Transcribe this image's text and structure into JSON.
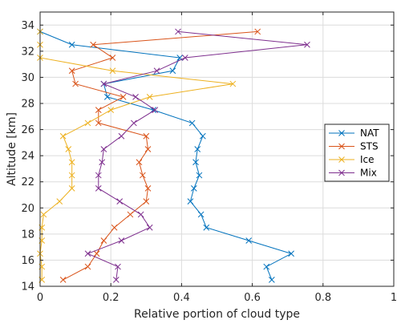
{
  "chart_data": {
    "type": "line",
    "xlabel": "Relative portion of cloud type",
    "ylabel": "Altitude [km]",
    "xlim": [
      0,
      1
    ],
    "ylim": [
      14,
      35
    ],
    "xticks": [
      "0",
      "0.2",
      "0.4",
      "0.6",
      "0.8",
      "1"
    ],
    "yticks": [
      "14",
      "16",
      "18",
      "20",
      "22",
      "24",
      "26",
      "28",
      "30",
      "32",
      "34"
    ],
    "grid": true,
    "legend_position": "right",
    "marker": "x",
    "series": [
      {
        "name": "NAT",
        "color": "#0072BD",
        "points": [
          [
            0.655,
            14.5
          ],
          [
            0.64,
            15.5
          ],
          [
            0.71,
            16.5
          ],
          [
            0.59,
            17.5
          ],
          [
            0.47,
            18.5
          ],
          [
            0.455,
            19.5
          ],
          [
            0.425,
            20.5
          ],
          [
            0.435,
            21.5
          ],
          [
            0.45,
            22.5
          ],
          [
            0.44,
            23.5
          ],
          [
            0.445,
            24.5
          ],
          [
            0.46,
            25.5
          ],
          [
            0.43,
            26.5
          ],
          [
            0.32,
            27.5
          ],
          [
            0.19,
            28.5
          ],
          [
            0.18,
            29.5
          ],
          [
            0.375,
            30.5
          ],
          [
            0.395,
            31.5
          ],
          [
            0.09,
            32.5
          ],
          [
            0.0,
            33.5
          ]
        ]
      },
      {
        "name": "STS",
        "color": "#D95319",
        "points": [
          [
            0.065,
            14.5
          ],
          [
            0.135,
            15.5
          ],
          [
            0.16,
            16.5
          ],
          [
            0.18,
            17.5
          ],
          [
            0.21,
            18.5
          ],
          [
            0.255,
            19.5
          ],
          [
            0.3,
            20.5
          ],
          [
            0.305,
            21.5
          ],
          [
            0.29,
            22.5
          ],
          [
            0.28,
            23.5
          ],
          [
            0.305,
            24.5
          ],
          [
            0.3,
            25.5
          ],
          [
            0.165,
            26.5
          ],
          [
            0.165,
            27.5
          ],
          [
            0.235,
            28.5
          ],
          [
            0.1,
            29.5
          ],
          [
            0.09,
            30.5
          ],
          [
            0.205,
            31.5
          ],
          [
            0.15,
            32.5
          ],
          [
            0.615,
            33.5
          ]
        ]
      },
      {
        "name": "Ice",
        "color": "#EDB120",
        "points": [
          [
            0.005,
            14.5
          ],
          [
            0.005,
            15.5
          ],
          [
            0.0,
            16.5
          ],
          [
            0.005,
            17.5
          ],
          [
            0.005,
            18.5
          ],
          [
            0.01,
            19.5
          ],
          [
            0.055,
            20.5
          ],
          [
            0.09,
            21.5
          ],
          [
            0.09,
            22.5
          ],
          [
            0.09,
            23.5
          ],
          [
            0.08,
            24.5
          ],
          [
            0.065,
            25.5
          ],
          [
            0.135,
            26.5
          ],
          [
            0.2,
            27.5
          ],
          [
            0.31,
            28.5
          ],
          [
            0.545,
            29.5
          ],
          [
            0.205,
            30.5
          ],
          [
            0.0,
            31.5
          ],
          [
            0.0,
            32.5
          ],
          [
            0.0,
            33.5
          ]
        ]
      },
      {
        "name": "Mix",
        "color": "#7E2F8E",
        "points": [
          [
            0.215,
            14.5
          ],
          [
            0.22,
            15.5
          ],
          [
            0.135,
            16.5
          ],
          [
            0.23,
            17.5
          ],
          [
            0.31,
            18.5
          ],
          [
            0.285,
            19.5
          ],
          [
            0.225,
            20.5
          ],
          [
            0.165,
            21.5
          ],
          [
            0.165,
            22.5
          ],
          [
            0.175,
            23.5
          ],
          [
            0.18,
            24.5
          ],
          [
            0.23,
            25.5
          ],
          [
            0.265,
            26.5
          ],
          [
            0.325,
            27.5
          ],
          [
            0.27,
            28.5
          ],
          [
            0.18,
            29.5
          ],
          [
            0.33,
            30.5
          ],
          [
            0.41,
            31.5
          ],
          [
            0.755,
            32.5
          ],
          [
            0.39,
            33.5
          ]
        ]
      }
    ]
  }
}
